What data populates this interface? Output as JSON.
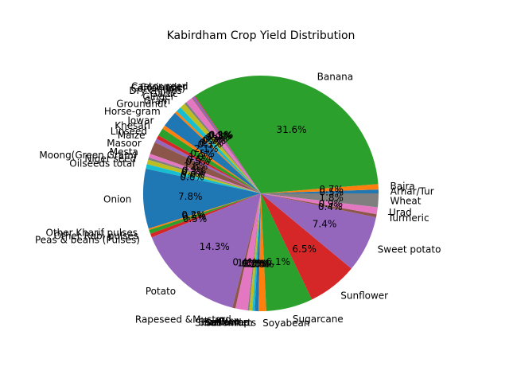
{
  "chart_data": {
    "type": "pie",
    "title": "Kabirdham Crop Yield Distribution",
    "start_angle_deg": 0,
    "direction": "counterclockwise",
    "slices": [
      {
        "label": "Arhar/Tur",
        "value": 0.5,
        "pct_text": "0.5%",
        "color": "#1f77b4"
      },
      {
        "label": "Bajra",
        "value": 0.7,
        "pct_text": "0.7%",
        "color": "#ff7f0e"
      },
      {
        "label": "Banana",
        "value": 31.6,
        "pct_text": "31.6%",
        "color": "#2ca02c"
      },
      {
        "label": "Castor seed",
        "value": 0.1,
        "pct_text": "0.1%",
        "color": "#d62728"
      },
      {
        "label": "Coriander",
        "value": 0.3,
        "pct_text": "0.3%",
        "color": "#9467bd"
      },
      {
        "label": "Cotton(lint)",
        "value": 0.1,
        "pct_text": "0.1%",
        "color": "#8c564b"
      },
      {
        "label": "Dry chillies",
        "value": 0.9,
        "pct_text": "0.9%",
        "color": "#e377c2"
      },
      {
        "label": "Garlic",
        "value": 0.3,
        "pct_text": "0.3%",
        "color": "#7f7f7f"
      },
      {
        "label": "Ginger",
        "value": 0.7,
        "pct_text": "0.7%",
        "color": "#bcbd22"
      },
      {
        "label": "Gram",
        "value": 0.7,
        "pct_text": "0.7%",
        "color": "#17becf"
      },
      {
        "label": "Groundnut",
        "value": 0.3,
        "pct_text": "0.3%",
        "color": "#ff7f0e"
      },
      {
        "label": "Horse-gram",
        "value": 2.1,
        "pct_text": "2.1%",
        "color": "#1f77b4"
      },
      {
        "label": "Jowar",
        "value": 0.5,
        "pct_text": "0.5%",
        "color": "#ff7f0e"
      },
      {
        "label": "Khesari",
        "value": 1.0,
        "pct_text": "1.0%",
        "color": "#2ca02c"
      },
      {
        "label": "Linseed",
        "value": 0.5,
        "pct_text": "0.5%",
        "color": "#d62728"
      },
      {
        "label": "Maize",
        "value": 0.5,
        "pct_text": "0.5%",
        "color": "#9467bd"
      },
      {
        "label": "Masoor",
        "value": 1.6,
        "pct_text": "1.6%",
        "color": "#8c564b"
      },
      {
        "label": "Mesta",
        "value": 0.5,
        "pct_text": "0.5%",
        "color": "#e377c2"
      },
      {
        "label": "Moong(Green Gram)",
        "value": 0.3,
        "pct_text": "0.3%",
        "color": "#7f7f7f"
      },
      {
        "label": "Niger seed",
        "value": 0.6,
        "pct_text": "0.6%",
        "color": "#bcbd22"
      },
      {
        "label": "Oilseeds total",
        "value": 0.6,
        "pct_text": "0.6%",
        "color": "#17becf"
      },
      {
        "label": "Onion",
        "value": 7.8,
        "pct_text": "7.8%",
        "color": "#1f77b4"
      },
      {
        "label": "Other Kharif pulses",
        "value": 0.2,
        "pct_text": "0.2%",
        "color": "#ff7f0e"
      },
      {
        "label": "Other Rabi pulses",
        "value": 0.5,
        "pct_text": "0.5%",
        "color": "#2ca02c"
      },
      {
        "label": "Peas & beans (Pulses)",
        "value": 0.5,
        "pct_text": "0.5%",
        "color": "#d62728"
      },
      {
        "label": "Potato",
        "value": 14.3,
        "pct_text": "14.3%",
        "color": "#9467bd"
      },
      {
        "label": "Rapeseed &Mustard",
        "value": 0.4,
        "pct_text": "0.4%",
        "color": "#8c564b"
      },
      {
        "label": "Rice",
        "value": 1.6,
        "pct_text": "1.6%",
        "color": "#e377c2"
      },
      {
        "label": "Safflower",
        "value": 0.2,
        "pct_text": "0.2%",
        "color": "#7f7f7f"
      },
      {
        "label": "Sannhamp",
        "value": 0.4,
        "pct_text": "0.4%",
        "color": "#bcbd22"
      },
      {
        "label": "Sesamum",
        "value": 0.3,
        "pct_text": "0.3%",
        "color": "#17becf"
      },
      {
        "label": "Small millets",
        "value": 0.5,
        "pct_text": "0.5%",
        "color": "#1f77b4"
      },
      {
        "label": "Soyabean",
        "value": 1.0,
        "pct_text": "1.0%",
        "color": "#ff7f0e"
      },
      {
        "label": "Sugarcane",
        "value": 6.1,
        "pct_text": "6.1%",
        "color": "#2ca02c"
      },
      {
        "label": "Sunflower",
        "value": 6.5,
        "pct_text": "6.5%",
        "color": "#d62728"
      },
      {
        "label": "Sweet potato",
        "value": 7.4,
        "pct_text": "7.4%",
        "color": "#9467bd"
      },
      {
        "label": "Turmeric",
        "value": 0.4,
        "pct_text": "0.4%",
        "color": "#8c564b"
      },
      {
        "label": "Urad",
        "value": 0.9,
        "pct_text": "0.9%",
        "color": "#e377c2"
      },
      {
        "label": "Wheat",
        "value": 1.8,
        "pct_text": "1.8%",
        "color": "#7f7f7f"
      }
    ]
  }
}
